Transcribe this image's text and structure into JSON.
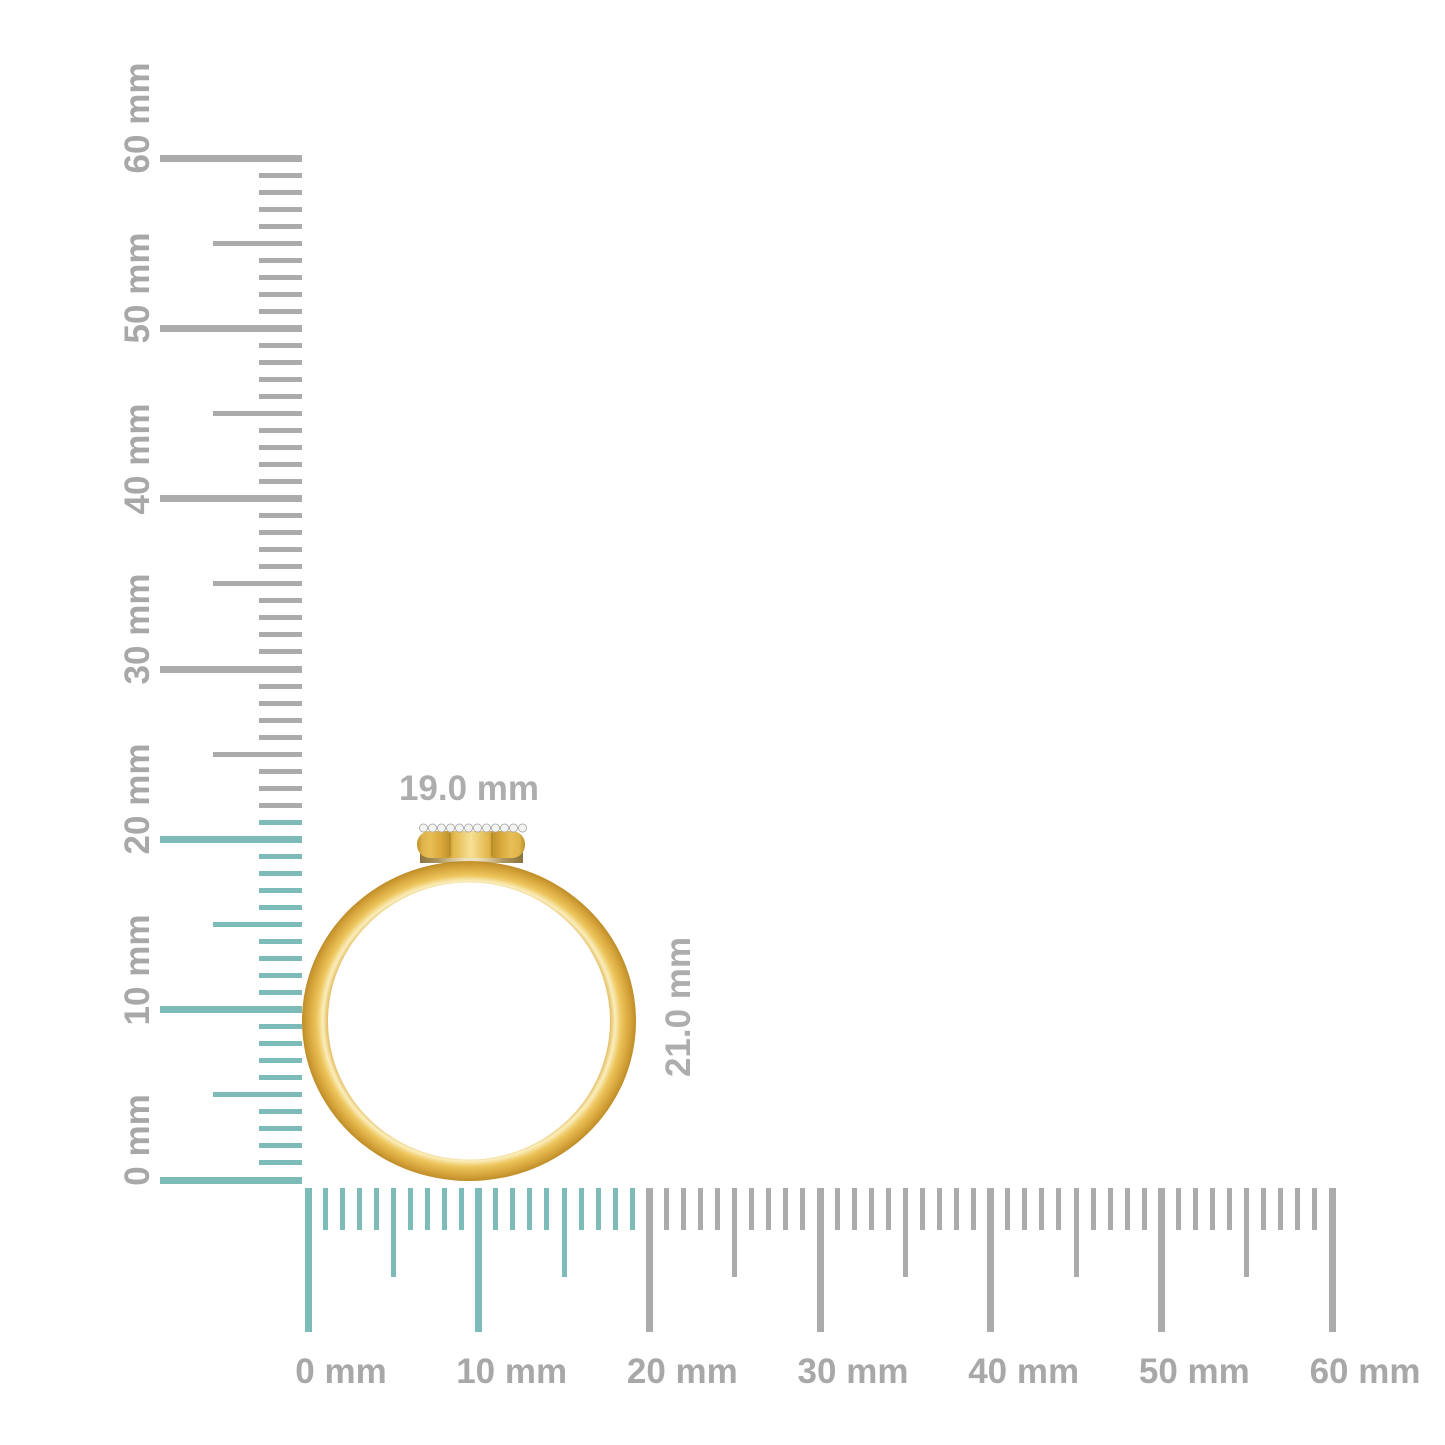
{
  "title": "Diamond ring side view with millimeter rulers",
  "colors": {
    "background": "#FFFFFF",
    "tick_gray": "#ABABAB",
    "tick_teal": "#7DBBB8",
    "ruler_label_gray": "#A8A8A8",
    "dimension_label_gray": "#ADADAD",
    "gold_dark": "#BF8D29",
    "gold_mid": "#E0B14A",
    "gold_highlight": "#FAEEBC",
    "diamond_fill": "#F3F3F1",
    "diamond_stroke": "#ABABA8"
  },
  "rulers": {
    "unit": "mm",
    "vertical": {
      "range_mm": [
        0,
        60
      ],
      "tick_step_mm": 1,
      "medium_every_mm": 5,
      "major_every_mm": 10,
      "major_labels": [
        "0 mm",
        "10 mm",
        "20 mm",
        "30 mm",
        "40 mm",
        "50 mm",
        "60 mm"
      ],
      "highlight_from_mm": 0,
      "highlight_to_mm": 21
    },
    "horizontal": {
      "range_mm": [
        0,
        60
      ],
      "tick_step_mm": 1,
      "medium_every_mm": 5,
      "major_every_mm": 10,
      "major_labels": [
        "0 mm",
        "10 mm",
        "20 mm",
        "30 mm",
        "40 mm",
        "50 mm",
        "60 mm"
      ],
      "highlight_from_mm": 0,
      "highlight_to_mm": 19
    }
  },
  "measurements": {
    "width_label": "19.0 mm",
    "height_label": "21.0 mm"
  },
  "ring": {
    "description": "yellow gold ring, side profile, round bezel head set with small diamonds",
    "diamond_count": 12
  }
}
